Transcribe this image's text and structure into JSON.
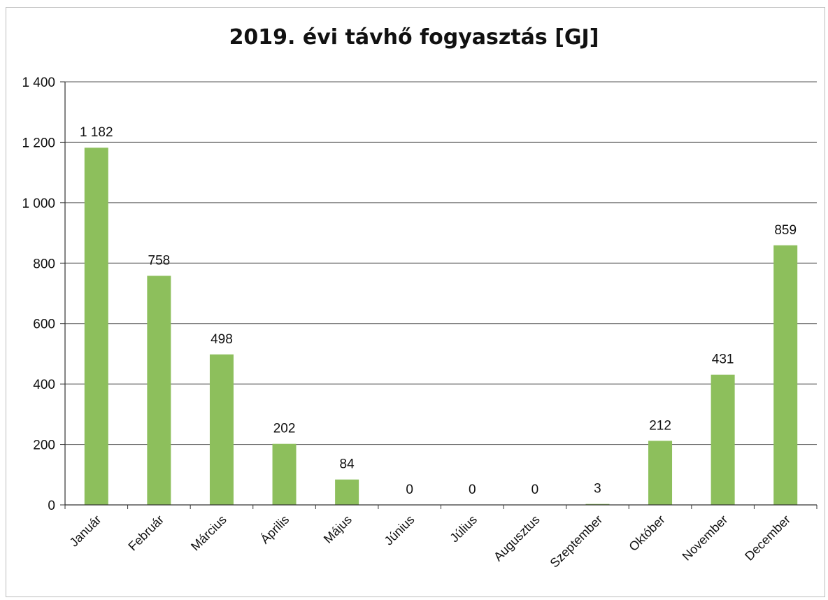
{
  "chart_data": {
    "type": "bar",
    "title": "2019. évi távhő fogyasztás [GJ]",
    "categories": [
      "Január",
      "Február",
      "Március",
      "Április",
      "Május",
      "Június",
      "Július",
      "Augusztus",
      "Szeptember",
      "Október",
      "November",
      "December"
    ],
    "values": [
      1182,
      758,
      498,
      202,
      84,
      0,
      0,
      0,
      3,
      212,
      431,
      859
    ],
    "data_labels": [
      "1 182",
      "758",
      "498",
      "202",
      "84",
      "0",
      "0",
      "0",
      "3",
      "212",
      "431",
      "859"
    ],
    "ylim": [
      0,
      1400
    ],
    "yticks": [
      0,
      200,
      400,
      600,
      800,
      1000,
      1200,
      1400
    ],
    "ytick_labels": [
      "0",
      "200",
      "400",
      "600",
      "800",
      "1 000",
      "1 200",
      "1 400"
    ],
    "grid": true,
    "legend": "none",
    "colors": {
      "bar": "#8dbf5c",
      "grid": "#555555",
      "axis": "#333333"
    }
  }
}
